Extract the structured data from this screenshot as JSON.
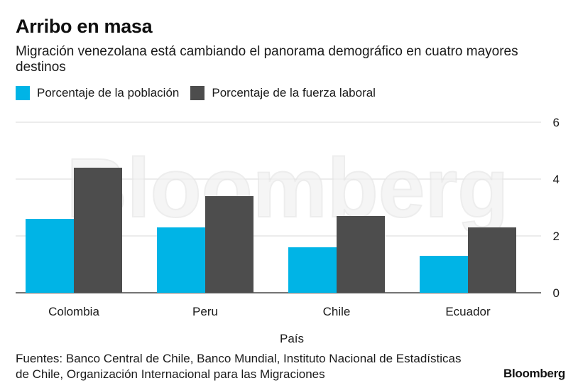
{
  "header": {
    "title": "Arribo en masa",
    "subtitle": "Migración venezolana está cambiando el panorama demográfico en cuatro mayores destinos"
  },
  "legend": [
    {
      "label": "Porcentaje de la población",
      "color": "#00b4e6"
    },
    {
      "label": "Porcentaje de la fuerza laboral",
      "color": "#4d4d4d"
    }
  ],
  "watermark": "Bloomberg",
  "footer": {
    "source": "Fuentes: Banco Central de Chile, Banco Mundial, Instituto Nacional de Estadísticas de Chile, Organización Internacional para las Migraciones",
    "brand": "Bloomberg"
  },
  "chart_data": {
    "type": "bar",
    "title": "Arribo en masa",
    "subtitle": "Migración venezolana está cambiando el panorama demográfico en cuatro mayores destinos",
    "xlabel": "País",
    "ylabel": "",
    "categories": [
      "Colombia",
      "Peru",
      "Chile",
      "Ecuador"
    ],
    "series": [
      {
        "name": "Porcentaje de la población",
        "values": [
          2.6,
          2.3,
          1.6,
          1.3
        ],
        "color": "#00b4e6"
      },
      {
        "name": "Porcentaje de la fuerza laboral",
        "values": [
          4.4,
          3.4,
          2.7,
          2.3
        ],
        "color": "#4d4d4d"
      }
    ],
    "ylim": [
      0,
      6
    ],
    "yticks": [
      0,
      2,
      4,
      6
    ],
    "y_axis_side": "right",
    "grid": true,
    "legend_position": "top-left"
  }
}
